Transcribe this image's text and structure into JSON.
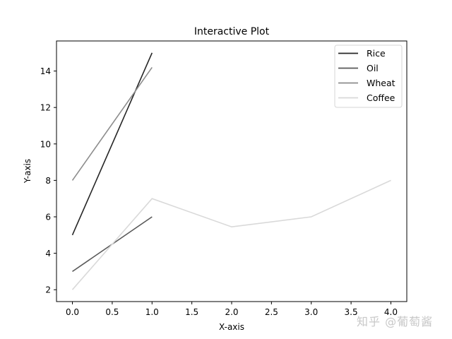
{
  "chart_data": {
    "type": "line",
    "title": "Interactive Plot",
    "xlabel": "X-axis",
    "ylabel": "Y-axis",
    "xlim": [
      -0.2,
      4.2
    ],
    "ylim": [
      1.35,
      15.65
    ],
    "xticks": [
      "0.0",
      "0.5",
      "1.0",
      "1.5",
      "2.0",
      "2.5",
      "3.0",
      "3.5",
      "4.0"
    ],
    "yticks": [
      "2",
      "4",
      "6",
      "8",
      "10",
      "12",
      "14"
    ],
    "grid": false,
    "legend_position": "upper right",
    "series": [
      {
        "name": "Rice",
        "color": "#262626",
        "x": [
          0,
          1
        ],
        "values": [
          5,
          15
        ]
      },
      {
        "name": "Oil",
        "color": "#595959",
        "x": [
          0,
          1
        ],
        "values": [
          3,
          6
        ]
      },
      {
        "name": "Wheat",
        "color": "#8c8c8c",
        "x": [
          0,
          1
        ],
        "values": [
          8,
          14.2
        ]
      },
      {
        "name": "Coffee",
        "color": "#d9d9d9",
        "x": [
          0,
          1,
          2,
          3,
          4
        ],
        "values": [
          2,
          7,
          5.45,
          6,
          8
        ]
      }
    ]
  },
  "watermark": "知乎 @葡萄酱"
}
